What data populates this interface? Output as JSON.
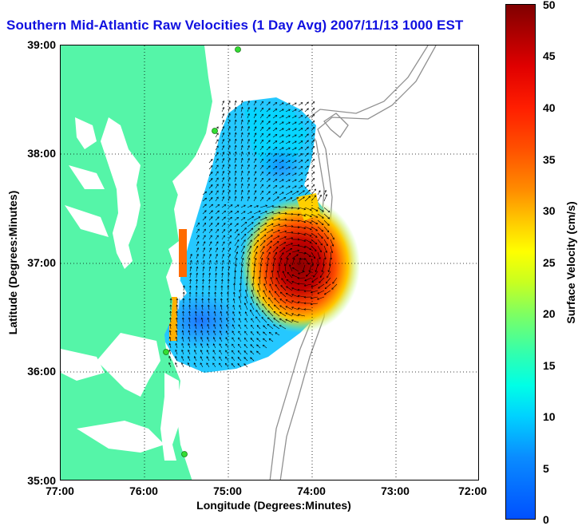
{
  "title": "Southern Mid-Atlantic Raw Velocities (1 Day Avg) 2007/11/13 1000 EST",
  "map": {
    "x_ticks": [
      "77:00",
      "76:00",
      "75:00",
      "74:00",
      "73:00",
      "72:00"
    ],
    "y_ticks": [
      "39:00",
      "38:00",
      "37:00",
      "36:00",
      "35:00"
    ],
    "xlabel": "Longitude (Degrees:Minutes)",
    "ylabel": "Latitude (Degrees:Minutes)",
    "land_color": "#55f5a8",
    "contour_color": "#909090",
    "station_color": "#33dd33"
  },
  "colorbar": {
    "label": "Surface Velocity (cm/s)",
    "ticks": [
      "50",
      "45",
      "40",
      "35",
      "30",
      "25",
      "20",
      "15",
      "10",
      "5",
      "0"
    ],
    "range": [
      0,
      50
    ]
  }
}
